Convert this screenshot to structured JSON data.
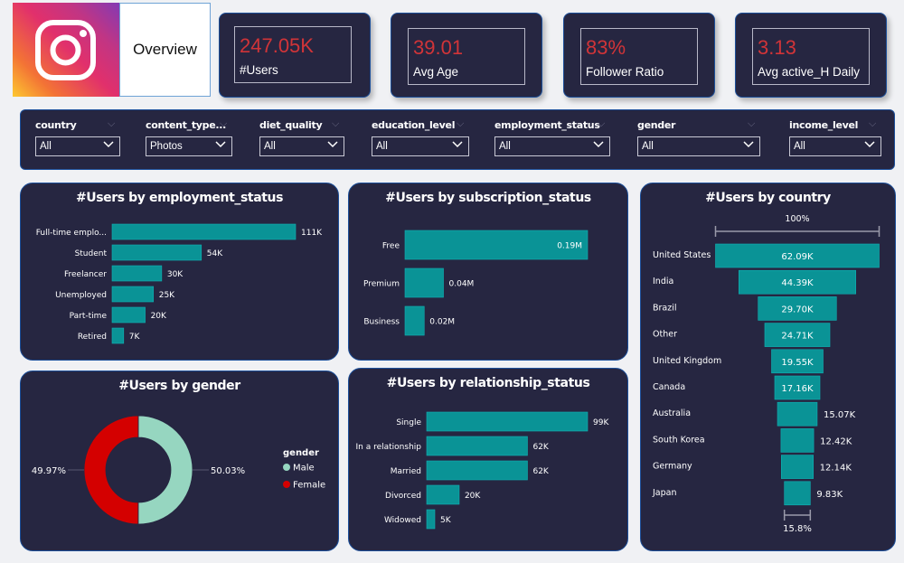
{
  "header": {
    "logo_icon": "instagram-icon",
    "title": "Overview",
    "brand_gradient": [
      "#fdc830",
      "#f37335",
      "#e1306c",
      "#c13584",
      "#833ab4"
    ]
  },
  "kpis": [
    {
      "value": "247.05K",
      "label": "#Users"
    },
    {
      "value": "39.01",
      "label": "Avg Age"
    },
    {
      "value": "83%",
      "label": "Follower Ratio"
    },
    {
      "value": "3.13",
      "label": "Avg active_H Daily"
    }
  ],
  "slicers": [
    {
      "label": "country",
      "value": "All"
    },
    {
      "label": "content_type...",
      "value": "Photos"
    },
    {
      "label": "diet_quality",
      "value": "All"
    },
    {
      "label": "education_level",
      "value": "All"
    },
    {
      "label": "employment_status",
      "value": "All"
    },
    {
      "label": "gender",
      "value": "All"
    },
    {
      "label": "income_level",
      "value": "All"
    }
  ],
  "colors": {
    "panel_bg": "#262641",
    "bar": "#0a9396",
    "kpi_value": "#d13438",
    "male": "#96d6c0",
    "female": "#d40000"
  },
  "chart_data": [
    {
      "id": "employment",
      "type": "bar",
      "title": "#Users by employment_status",
      "categories": [
        "Full-time emplo...",
        "Student",
        "Freelancer",
        "Unemployed",
        "Part-time",
        "Retired"
      ],
      "values": [
        111,
        54,
        30,
        25,
        20,
        7
      ],
      "labels": [
        "111K",
        "54K",
        "30K",
        "25K",
        "20K",
        "7K"
      ],
      "unit": "K"
    },
    {
      "id": "subscription",
      "type": "bar",
      "title": "#Users by subscription_status",
      "categories": [
        "Free",
        "Premium",
        "Business"
      ],
      "values": [
        0.19,
        0.04,
        0.02
      ],
      "labels": [
        "0.19M",
        "0.04M",
        "0.02M"
      ],
      "unit": "M"
    },
    {
      "id": "country",
      "type": "funnel",
      "title": "#Users by country",
      "categories": [
        "United States",
        "India",
        "Brazil",
        "Other",
        "United Kingdom",
        "Canada",
        "Australia",
        "South Korea",
        "Germany",
        "Japan"
      ],
      "values": [
        62.09,
        44.39,
        29.7,
        24.71,
        19.55,
        17.16,
        15.07,
        12.42,
        12.14,
        9.83
      ],
      "labels": [
        "62.09K",
        "44.39K",
        "29.70K",
        "24.71K",
        "19.55K",
        "17.16K",
        "15.07K",
        "12.42K",
        "12.14K",
        "9.83K"
      ],
      "top_pct_label": "100%",
      "bottom_pct_label": "15.8%",
      "unit": "K"
    },
    {
      "id": "gender",
      "type": "pie",
      "title": "#Users by gender",
      "legend_title": "gender",
      "categories": [
        "Male",
        "Female"
      ],
      "values": [
        50.03,
        49.97
      ],
      "labels": [
        "50.03%",
        "49.97%"
      ],
      "colors": [
        "#96d6c0",
        "#d40000"
      ],
      "legend_position": "right"
    },
    {
      "id": "relationship",
      "type": "bar",
      "title": "#Users by relationship_status",
      "categories": [
        "Single",
        "In a relationship",
        "Married",
        "Divorced",
        "Widowed"
      ],
      "values": [
        99,
        62,
        62,
        20,
        5
      ],
      "labels": [
        "99K",
        "62K",
        "62K",
        "20K",
        "5K"
      ],
      "unit": "K"
    }
  ]
}
